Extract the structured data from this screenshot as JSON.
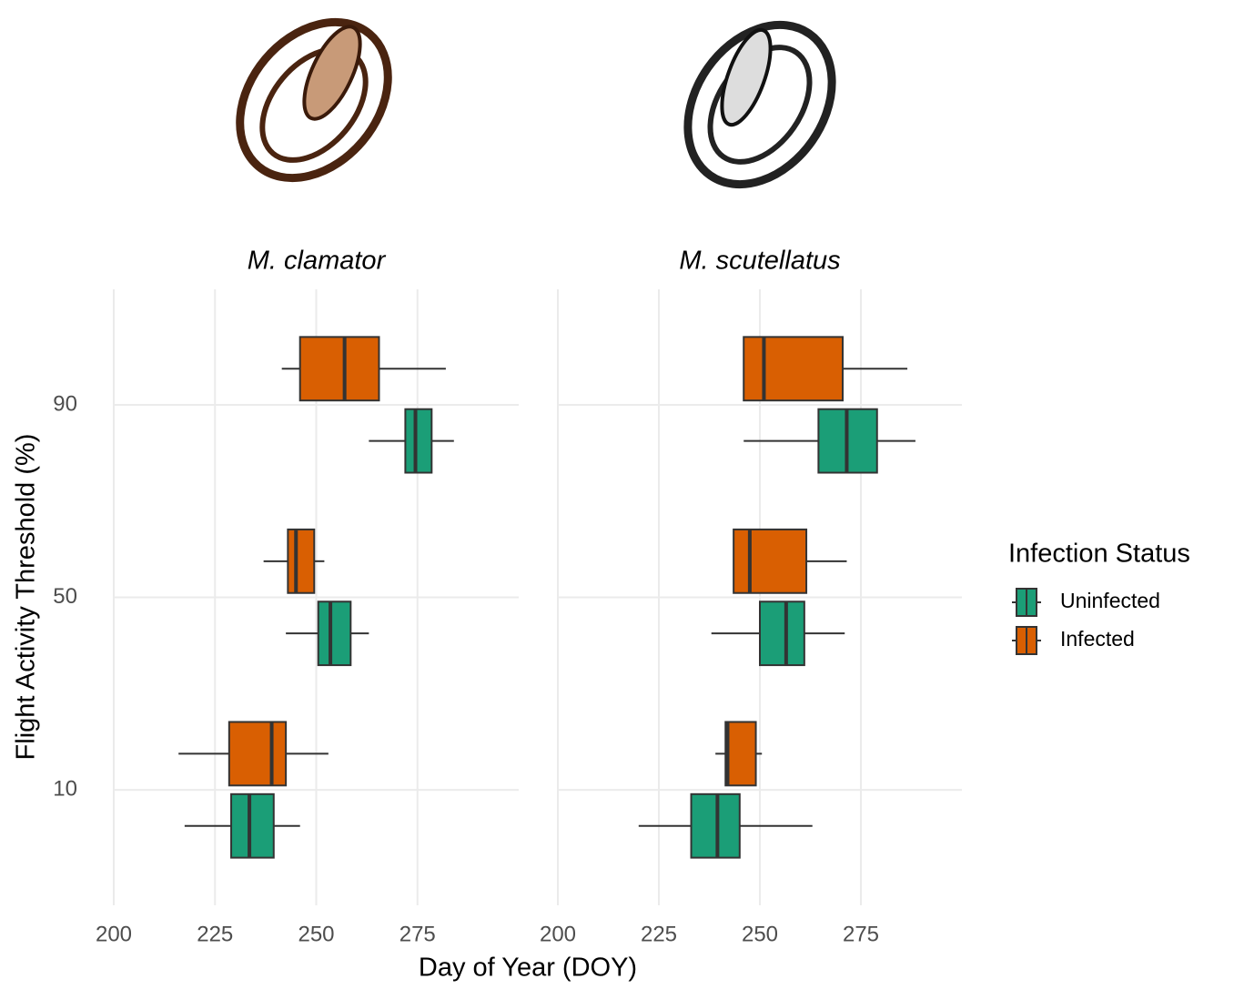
{
  "x_label": "Day of Year (DOY)",
  "y_label": "Flight Activity Threshold (%)",
  "legend": {
    "title": "Infection Status",
    "position": "right"
  },
  "chart_data": [
    {
      "type": "box",
      "title": "M. clamator",
      "categories": [
        "10",
        "50",
        "90"
      ],
      "xlim": [
        200,
        300
      ],
      "xticks": [
        200,
        225,
        250,
        275
      ],
      "grid": true,
      "series": [
        {
          "name": "Uninfected",
          "color": "#1b9e77",
          "values": [
            {
              "min": 217.5,
              "q1": 229,
              "median": 233.5,
              "q3": 239.5,
              "max": 246
            },
            {
              "min": 242.5,
              "q1": 250.5,
              "median": 253.5,
              "q3": 258.5,
              "max": 263
            },
            {
              "min": 263,
              "q1": 272,
              "median": 274.5,
              "q3": 278.5,
              "max": 284
            }
          ]
        },
        {
          "name": "Infected",
          "color": "#d95f02",
          "values": [
            {
              "min": 216,
              "q1": 228.5,
              "median": 239,
              "q3": 242.5,
              "max": 253
            },
            {
              "min": 237,
              "q1": 243,
              "median": 245,
              "q3": 249.5,
              "max": 252
            },
            {
              "min": 241.5,
              "q1": 246,
              "median": 257,
              "q3": 265.5,
              "max": 282
            }
          ]
        }
      ]
    },
    {
      "type": "box",
      "title": "M. scutellatus",
      "categories": [
        "10",
        "50",
        "90"
      ],
      "xlim": [
        200,
        300
      ],
      "xticks": [
        200,
        225,
        250,
        275
      ],
      "grid": true,
      "series": [
        {
          "name": "Uninfected",
          "color": "#1b9e77",
          "values": [
            {
              "min": 220,
              "q1": 233,
              "median": 239.5,
              "q3": 245,
              "max": 263
            },
            {
              "min": 238,
              "q1": 250,
              "median": 256.5,
              "q3": 261,
              "max": 271
            },
            {
              "min": 246,
              "q1": 264.5,
              "median": 271.5,
              "q3": 279,
              "max": 288.5
            }
          ]
        },
        {
          "name": "Infected",
          "color": "#d95f02",
          "values": [
            {
              "min": 239,
              "q1": 241.5,
              "median": 242,
              "q3": 249,
              "max": 250.5
            },
            {
              "min": 243.5,
              "q1": 243.5,
              "median": 247.5,
              "q3": 261.5,
              "max": 271.5
            },
            {
              "min": 246,
              "q1": 246,
              "median": 251,
              "q3": 270.5,
              "max": 286.5
            }
          ]
        }
      ]
    }
  ]
}
